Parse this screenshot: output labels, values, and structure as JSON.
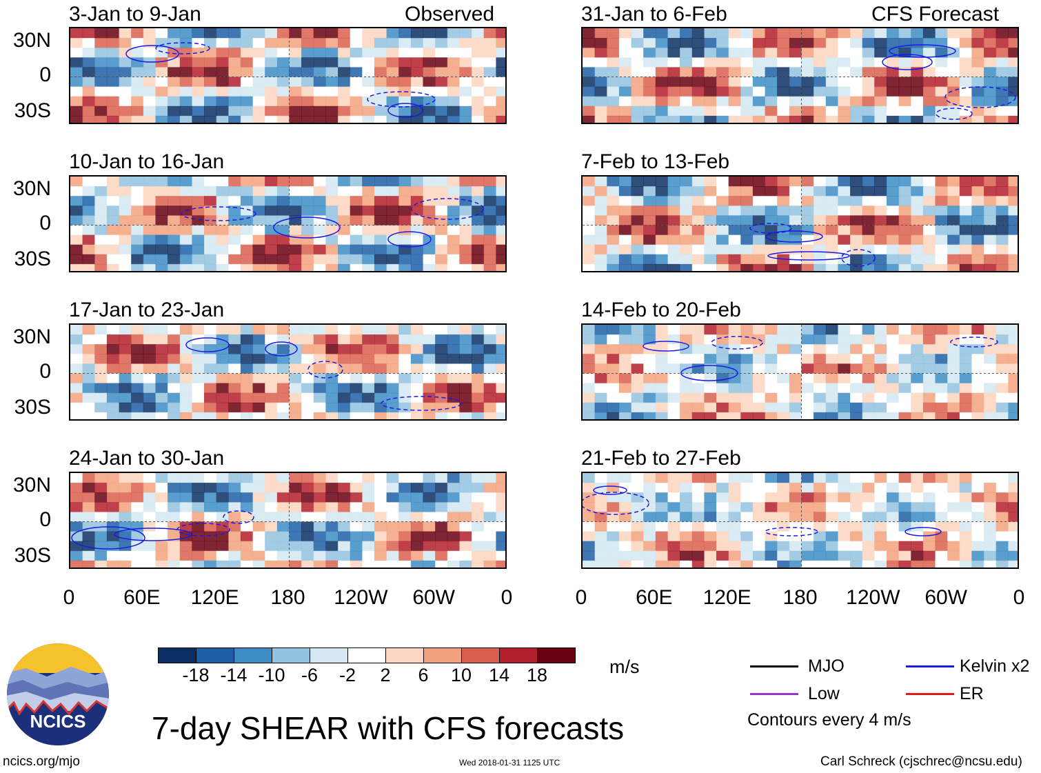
{
  "chart_data": {
    "type": "heatmap",
    "title": "7-day SHEAR with CFS forecasts",
    "variable": "SHEAR",
    "units": "m/s",
    "observed_label": "Observed",
    "forecast_label": "CFS Forecast",
    "x_ticks": [
      "0",
      "60E",
      "120E",
      "180",
      "120W",
      "60W",
      "0"
    ],
    "y_ticks": [
      "30N",
      "0",
      "30S"
    ],
    "panels_observed": [
      {
        "title": "3-Jan to 9-Jan"
      },
      {
        "title": "10-Jan to 16-Jan"
      },
      {
        "title": "17-Jan to 23-Jan"
      },
      {
        "title": "24-Jan to 30-Jan"
      }
    ],
    "panels_forecast": [
      {
        "title": "31-Jan to 6-Feb"
      },
      {
        "title": "7-Feb to 13-Feb"
      },
      {
        "title": "14-Feb to 20-Feb"
      },
      {
        "title": "21-Feb to 27-Feb"
      }
    ],
    "colorbar": {
      "labels": [
        "-18",
        "-14",
        "-10",
        "-6",
        "-2",
        "2",
        "6",
        "10",
        "14",
        "18"
      ],
      "colors": [
        "#0b2f63",
        "#1d5fa6",
        "#3d8dc4",
        "#93c3df",
        "#d4e7f2",
        "#ffffff",
        "#fcd6c0",
        "#f3a27f",
        "#d9604e",
        "#b11f2b",
        "#690012"
      ]
    },
    "legend": [
      {
        "label": "MJO",
        "color": "#000000"
      },
      {
        "label": "Kelvin x2",
        "color": "#1a1ae6"
      },
      {
        "label": "Low",
        "color": "#9933cc"
      },
      {
        "label": "ER",
        "color": "#e01b1b"
      }
    ],
    "contour_note": "Contours every 4 m/s"
  },
  "footer": {
    "left": "ncics.org/mjo",
    "center": "Wed 2018-01-31 1125 UTC",
    "right": "Carl Schreck (cjschrec@ncsu.edu)"
  },
  "logo": {
    "text": "NCICS"
  }
}
